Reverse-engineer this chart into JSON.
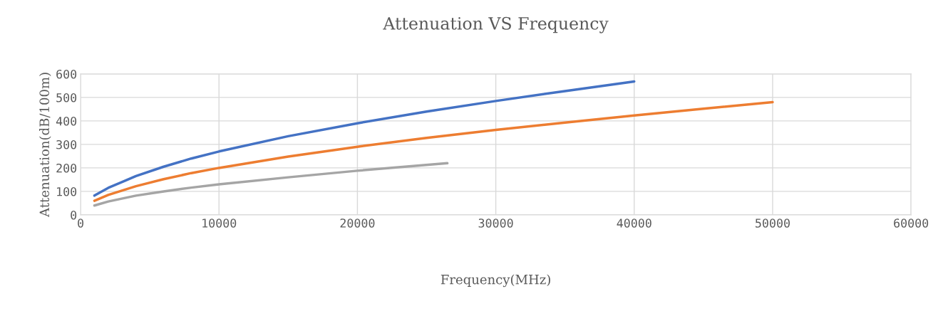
{
  "chart_data": {
    "type": "line",
    "title": "Attenuation VS Frequency",
    "xlabel": "Frequency(MHz)",
    "ylabel": "Attenuation(dB/100m)",
    "xlim": [
      0,
      60000
    ],
    "xticks": [
      0,
      10000,
      20000,
      30000,
      40000,
      50000,
      60000
    ],
    "ylim": [
      0,
      600
    ],
    "yticks": [
      0,
      100,
      200,
      300,
      400,
      500,
      600
    ],
    "grid": true,
    "marker": "none",
    "line_style": "solid",
    "series": [
      {
        "color": "#4472c4",
        "x": [
          1000,
          2000,
          4000,
          6000,
          8000,
          10000,
          15000,
          20000,
          25000,
          30000,
          35000,
          40000
        ],
        "values": [
          82,
          115,
          165,
          205,
          240,
          270,
          335,
          390,
          440,
          485,
          527,
          568
        ]
      },
      {
        "color": "#ed7d31",
        "x": [
          1000,
          2000,
          4000,
          6000,
          8000,
          10000,
          15000,
          20000,
          25000,
          30000,
          35000,
          40000,
          45000,
          50000
        ],
        "values": [
          60,
          85,
          122,
          152,
          178,
          200,
          248,
          290,
          328,
          362,
          393,
          423,
          452,
          480
        ]
      },
      {
        "color": "#a5a5a5",
        "x": [
          1000,
          2000,
          4000,
          6000,
          8000,
          10000,
          15000,
          20000,
          26500
        ],
        "values": [
          40,
          57,
          82,
          100,
          116,
          130,
          160,
          188,
          220
        ]
      }
    ]
  }
}
